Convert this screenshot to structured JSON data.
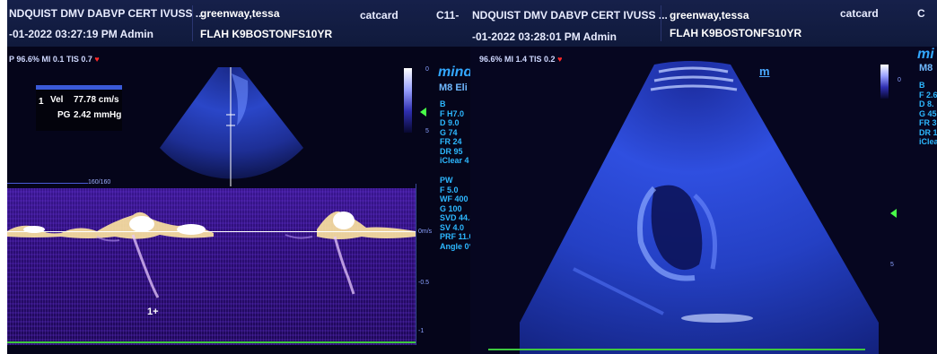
{
  "left": {
    "header": {
      "name": "NDQUIST DMV DABVP CERT IVUSS ...",
      "datetime": "-01-2022 03:27:19 PM  Admin",
      "patient": "greenway,tessa",
      "probe_id": "FLAH K9BOSTONFS10YR",
      "exam": "catcard",
      "code": "C11-"
    },
    "status": {
      "text": "P 96.6%  MI 0.1  TIS 0.7"
    },
    "logo_mark": "m",
    "brand": "mind",
    "probe": "M8 Eli",
    "measurement": {
      "index": "1",
      "vel_label": "Vel",
      "vel_value": "77.78 cm/s",
      "pg_label": "PG",
      "pg_value": "2.42 mmHg"
    },
    "params_b": [
      "B",
      "F H7.0",
      "D 9.0",
      "G 74",
      "FR 24",
      "DR 95",
      "iClear 4"
    ],
    "params_pw": [
      "PW",
      "F 5.0",
      "WF 400",
      "G 100",
      "SVD 44.3",
      "SV 4.0",
      "PRF 11.0",
      "Angle 0°"
    ],
    "gate_label": "160/160",
    "doppler_scale": [
      "0m/s",
      "-0.5",
      "-1"
    ],
    "cursor_label": "1+",
    "gray_ticks": [
      "0",
      "5"
    ]
  },
  "right": {
    "header": {
      "name": "NDQUIST DMV DABVP CERT IVUSS ...",
      "datetime": "-01-2022 03:28:01 PM  Admin",
      "patient": "greenway,tessa",
      "probe_id": "FLAH K9BOSTONFS10YR",
      "exam": "catcard",
      "code": "C"
    },
    "status": {
      "text": "96.6%  MI 1.4  TIS 0.2"
    },
    "logo_mark": "m",
    "brand": "mi",
    "probe": "M8",
    "params_b": [
      "B",
      "F 2.6",
      "D 8.",
      "G 45",
      "FR 3",
      "DR 1",
      "iClea"
    ],
    "depth_ticks": [
      "0",
      "5"
    ]
  },
  "colors": {
    "accent": "#2db8ff",
    "doppler": "#2a0c72",
    "heart": "#ff2a2a",
    "marker": "#48ff48"
  }
}
